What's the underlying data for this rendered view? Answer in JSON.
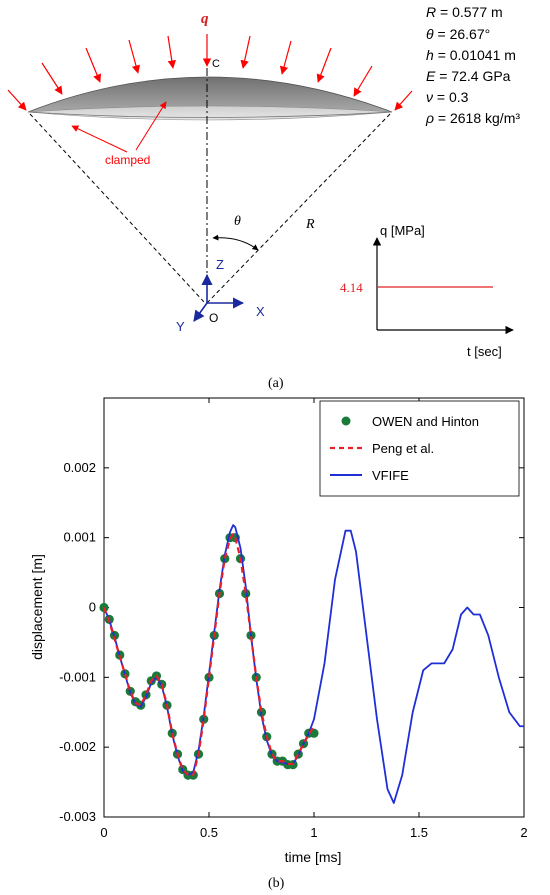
{
  "figure_a": {
    "params": [
      {
        "sym": "R",
        "val": "= 0.577 m"
      },
      {
        "sym": "θ",
        "val": "= 26.67°"
      },
      {
        "sym": "h",
        "val": "= 0.01041 m"
      },
      {
        "sym": "E",
        "val": "= 72.4 GPa"
      },
      {
        "sym": "ν",
        "val": "= 0.3"
      },
      {
        "sym": "ρ",
        "val": "= 2618 kg/m³"
      }
    ],
    "load_label": "q",
    "apex_label": "C",
    "clamped_label": "clamped",
    "theta_label": "θ",
    "radius_label": "R",
    "axis_z": "Z",
    "axis_x": "X",
    "axis_y": "Y",
    "origin": "O",
    "load_plot": {
      "ylabel": "q [MPa]",
      "xlabel": "t [sec]",
      "value_label": "4.14"
    },
    "caption": "(a)",
    "accent_color": "#ff0000"
  },
  "figure_b": {
    "caption": "(b)"
  },
  "chart_data": {
    "type": "line",
    "xlabel": "time [ms]",
    "ylabel": "displacement [m]",
    "xlim": [
      0,
      2
    ],
    "ylim": [
      -0.003,
      0.003
    ],
    "xticks": [
      "0",
      "0.5",
      "1",
      "1.5",
      "2"
    ],
    "yticks": [
      "-0.003",
      "-0.002",
      "-0.001",
      "0",
      "0.001",
      "0.002"
    ],
    "legend_position": "top-right",
    "series": [
      {
        "name": "OWEN and Hinton",
        "kind": "markers",
        "color": "#1a7a3a",
        "x": [
          0,
          0.025,
          0.05,
          0.075,
          0.1,
          0.125,
          0.15,
          0.175,
          0.2,
          0.225,
          0.25,
          0.275,
          0.3,
          0.325,
          0.35,
          0.375,
          0.4,
          0.425,
          0.45,
          0.475,
          0.5,
          0.525,
          0.55,
          0.575,
          0.6,
          0.625,
          0.65,
          0.675,
          0.7,
          0.725,
          0.75,
          0.775,
          0.8,
          0.825,
          0.85,
          0.875,
          0.9,
          0.925,
          0.95,
          0.975,
          1.0
        ],
        "y": [
          0,
          -0.00017,
          -0.0004,
          -0.00068,
          -0.00095,
          -0.0012,
          -0.00135,
          -0.0014,
          -0.00125,
          -0.00105,
          -0.00098,
          -0.0011,
          -0.0014,
          -0.0018,
          -0.0021,
          -0.00232,
          -0.0024,
          -0.0024,
          -0.0021,
          -0.0016,
          -0.001,
          -0.0004,
          0.0002,
          0.0007,
          0.001,
          0.001,
          0.0007,
          0.0002,
          -0.0004,
          -0.001,
          -0.0015,
          -0.00185,
          -0.0021,
          -0.0022,
          -0.0022,
          -0.00225,
          -0.00225,
          -0.0021,
          -0.00195,
          -0.0018,
          -0.0018
        ]
      },
      {
        "name": "Peng et al.",
        "kind": "dashed",
        "color": "#e8202a",
        "x": [
          0,
          0.025,
          0.05,
          0.075,
          0.1,
          0.125,
          0.15,
          0.175,
          0.2,
          0.225,
          0.25,
          0.275,
          0.3,
          0.325,
          0.35,
          0.375,
          0.4,
          0.425,
          0.45,
          0.475,
          0.5,
          0.525,
          0.55,
          0.575,
          0.6,
          0.615,
          0.625,
          0.65,
          0.675,
          0.7,
          0.725,
          0.75,
          0.775,
          0.8,
          0.825,
          0.85,
          0.875,
          0.9,
          0.925,
          0.95,
          0.975,
          1.0
        ],
        "y": [
          0,
          -0.0002,
          -0.00045,
          -0.0007,
          -0.00095,
          -0.0012,
          -0.00137,
          -0.0014,
          -0.00125,
          -0.00105,
          -0.00098,
          -0.0011,
          -0.0014,
          -0.0018,
          -0.0021,
          -0.00232,
          -0.0024,
          -0.0024,
          -0.0021,
          -0.0016,
          -0.001,
          -0.0004,
          0.0002,
          0.0007,
          0.00098,
          0.00105,
          0.001,
          0.0007,
          0.0002,
          -0.0004,
          -0.001,
          -0.0015,
          -0.00185,
          -0.0021,
          -0.0022,
          -0.0022,
          -0.00224,
          -0.00224,
          -0.0021,
          -0.00195,
          -0.00182,
          -0.0017
        ]
      },
      {
        "name": "VFIFE",
        "kind": "line",
        "color": "#1f2fd6",
        "x": [
          0,
          0.025,
          0.05,
          0.075,
          0.1,
          0.125,
          0.15,
          0.175,
          0.2,
          0.225,
          0.25,
          0.275,
          0.3,
          0.325,
          0.35,
          0.375,
          0.4,
          0.425,
          0.45,
          0.475,
          0.5,
          0.525,
          0.55,
          0.575,
          0.6,
          0.615,
          0.625,
          0.65,
          0.675,
          0.7,
          0.725,
          0.75,
          0.775,
          0.8,
          0.825,
          0.85,
          0.875,
          0.9,
          0.925,
          0.95,
          0.975,
          1.0,
          1.05,
          1.1,
          1.15,
          1.175,
          1.2,
          1.25,
          1.3,
          1.35,
          1.38,
          1.42,
          1.47,
          1.52,
          1.56,
          1.62,
          1.66,
          1.7,
          1.73,
          1.76,
          1.79,
          1.83,
          1.88,
          1.93,
          1.98,
          2.0
        ],
        "y": [
          0,
          -0.00018,
          -0.00042,
          -0.0007,
          -0.00096,
          -0.00122,
          -0.00138,
          -0.00142,
          -0.00128,
          -0.00108,
          -0.001,
          -0.00112,
          -0.00142,
          -0.00182,
          -0.00212,
          -0.00234,
          -0.0024,
          -0.00236,
          -0.00205,
          -0.00155,
          -0.00095,
          -0.00035,
          0.00025,
          0.00075,
          0.00108,
          0.00118,
          0.00115,
          0.00085,
          0.0003,
          -0.0004,
          -0.00102,
          -0.00155,
          -0.0019,
          -0.00212,
          -0.0022,
          -0.00222,
          -0.00224,
          -0.00224,
          -0.00212,
          -0.00195,
          -0.0018,
          -0.0016,
          -0.0008,
          0.0004,
          0.0011,
          0.0011,
          0.0008,
          -0.0004,
          -0.0016,
          -0.0026,
          -0.0028,
          -0.0024,
          -0.0015,
          -0.0009,
          -0.0008,
          -0.0008,
          -0.0006,
          -0.0001,
          0.0,
          -0.0001,
          -0.0001,
          -0.0004,
          -0.001,
          -0.0015,
          -0.0017,
          -0.0017
        ]
      }
    ]
  }
}
